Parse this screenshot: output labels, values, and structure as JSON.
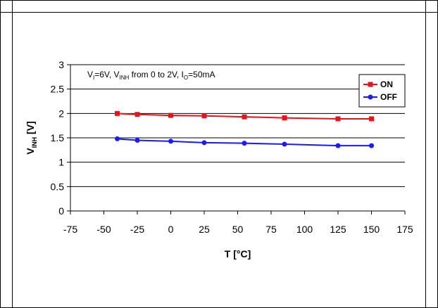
{
  "chart_data": {
    "type": "line",
    "title": "",
    "xlabel": "T [°C]",
    "ylabel": {
      "main": "V",
      "sub": "INH",
      "unit": " [V]"
    },
    "condition": [
      {
        "t": "V",
        "sub": false
      },
      {
        "t": "I",
        "sub": true
      },
      {
        "t": "=6V, V",
        "sub": false
      },
      {
        "t": "INH",
        "sub": true
      },
      {
        "t": " from 0 to 2V, I",
        "sub": false
      },
      {
        "t": "O",
        "sub": true
      },
      {
        "t": "=50mA",
        "sub": false
      }
    ],
    "xlim": [
      -75,
      175
    ],
    "ylim": [
      0,
      3
    ],
    "xticks": [
      "-75",
      "-50",
      "-25",
      "0",
      "25",
      "50",
      "75",
      "100",
      "125",
      "150",
      "175"
    ],
    "yticks": [
      "0",
      "0.5",
      "1",
      "1.5",
      "2",
      "2.5",
      "3"
    ],
    "grid": "horizontal",
    "legend_position": "top-right",
    "x": [
      -40,
      -25,
      0,
      25,
      55,
      85,
      125,
      150
    ],
    "series": [
      {
        "name": "ON",
        "color": "#e8141c",
        "marker": "square",
        "values": [
          2.0,
          1.98,
          1.96,
          1.95,
          1.93,
          1.91,
          1.89,
          1.89
        ]
      },
      {
        "name": "OFF",
        "color": "#1a1aff",
        "marker": "circle",
        "values": [
          1.48,
          1.45,
          1.43,
          1.4,
          1.39,
          1.37,
          1.34,
          1.34
        ]
      }
    ]
  }
}
